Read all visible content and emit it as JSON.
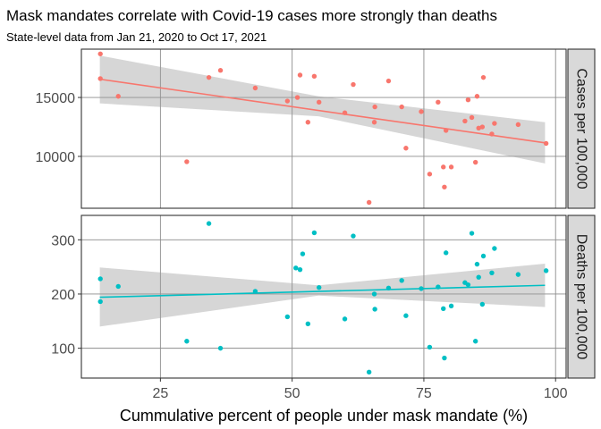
{
  "chart_data": {
    "type": "scatter",
    "title": "Mask mandates correlate with Covid-19 cases more strongly than deaths",
    "subtitle": "State-level data from Jan 21, 2020 to Oct 17, 2021",
    "xlabel": "Cummulative percent of people under mask mandate (%)",
    "xlim": [
      10,
      102
    ],
    "x_ticks": [
      "25",
      "50",
      "75",
      "100"
    ],
    "x_tick_values": [
      25,
      50,
      75,
      100
    ],
    "grid": true,
    "trend": "linear fit with confidence band",
    "panels": [
      {
        "strip_label": "Cases per 100,000",
        "color": "#F8766D",
        "ylim": [
          5600,
          19100
        ],
        "y_ticks": [
          "10000",
          "15000"
        ],
        "y_tick_values": [
          10000,
          15000
        ],
        "fit": {
          "x": [
            13.5,
            98
          ],
          "y": [
            16550,
            11150
          ]
        },
        "band_upper": [
          [
            13.5,
            18550
          ],
          [
            55,
            15100
          ],
          [
            98,
            12900
          ]
        ],
        "band_lower": [
          [
            13.5,
            14500
          ],
          [
            55,
            13400
          ],
          [
            98,
            9400
          ]
        ],
        "points": [
          [
            13.6,
            18700
          ],
          [
            13.6,
            16600
          ],
          [
            17,
            15100
          ],
          [
            30,
            9550
          ],
          [
            34.2,
            16700
          ],
          [
            36.4,
            17300
          ],
          [
            43,
            15800
          ],
          [
            49.1,
            14700
          ],
          [
            51,
            15000
          ],
          [
            51.5,
            16900
          ],
          [
            53,
            12900
          ],
          [
            54.2,
            16800
          ],
          [
            55.1,
            14600
          ],
          [
            60,
            13700
          ],
          [
            61.6,
            16100
          ],
          [
            64.6,
            6100
          ],
          [
            65.6,
            12900
          ],
          [
            65.7,
            14200
          ],
          [
            68.3,
            16400
          ],
          [
            70.8,
            14200
          ],
          [
            71.6,
            10700
          ],
          [
            74.5,
            13800
          ],
          [
            76.1,
            8500
          ],
          [
            77.7,
            14600
          ],
          [
            78.7,
            9100
          ],
          [
            78.9,
            7400
          ],
          [
            79.2,
            12200
          ],
          [
            80.2,
            9100
          ],
          [
            82.8,
            13000
          ],
          [
            83.4,
            14800
          ],
          [
            84.1,
            13300
          ],
          [
            84.8,
            9500
          ],
          [
            85.1,
            15100
          ],
          [
            85.4,
            12400
          ],
          [
            86.1,
            12500
          ],
          [
            86.3,
            16700
          ],
          [
            87.9,
            11900
          ],
          [
            88.4,
            12800
          ],
          [
            92.9,
            12700
          ],
          [
            98.2,
            11100
          ]
        ]
      },
      {
        "strip_label": "Deaths per 100,000",
        "color": "#00BFC4",
        "ylim": [
          45,
          345
        ],
        "y_ticks": [
          "100",
          "200",
          "300"
        ],
        "y_tick_values": [
          100,
          200,
          300
        ],
        "fit": {
          "x": [
            13.5,
            98
          ],
          "y": [
            194,
            216
          ]
        },
        "band_upper": [
          [
            13.5,
            249
          ],
          [
            55,
            216
          ],
          [
            98,
            256
          ]
        ],
        "band_lower": [
          [
            13.5,
            140
          ],
          [
            55,
            197
          ],
          [
            98,
            176
          ]
        ],
        "points": [
          [
            13.6,
            228
          ],
          [
            13.6,
            186
          ],
          [
            17,
            214
          ],
          [
            30,
            113
          ],
          [
            34.2,
            330
          ],
          [
            36.4,
            100
          ],
          [
            43,
            205
          ],
          [
            49.1,
            158
          ],
          [
            50.7,
            248
          ],
          [
            51.5,
            245
          ],
          [
            52,
            274
          ],
          [
            53,
            145
          ],
          [
            54.2,
            313
          ],
          [
            55.1,
            212
          ],
          [
            60,
            154
          ],
          [
            61.6,
            307
          ],
          [
            64.6,
            56
          ],
          [
            65.6,
            200
          ],
          [
            65.7,
            172
          ],
          [
            68.3,
            211
          ],
          [
            70.8,
            225
          ],
          [
            71.6,
            160
          ],
          [
            74.5,
            210
          ],
          [
            76.1,
            102
          ],
          [
            77.7,
            213
          ],
          [
            78.7,
            173
          ],
          [
            78.9,
            82
          ],
          [
            79.2,
            276
          ],
          [
            80.2,
            178
          ],
          [
            82.8,
            221
          ],
          [
            83.4,
            217
          ],
          [
            84.1,
            312
          ],
          [
            84.8,
            113
          ],
          [
            85.1,
            255
          ],
          [
            85.4,
            231
          ],
          [
            86.1,
            181
          ],
          [
            86.3,
            270
          ],
          [
            87.9,
            239
          ],
          [
            88.4,
            284
          ],
          [
            92.9,
            236
          ],
          [
            98.2,
            243
          ]
        ]
      }
    ]
  }
}
